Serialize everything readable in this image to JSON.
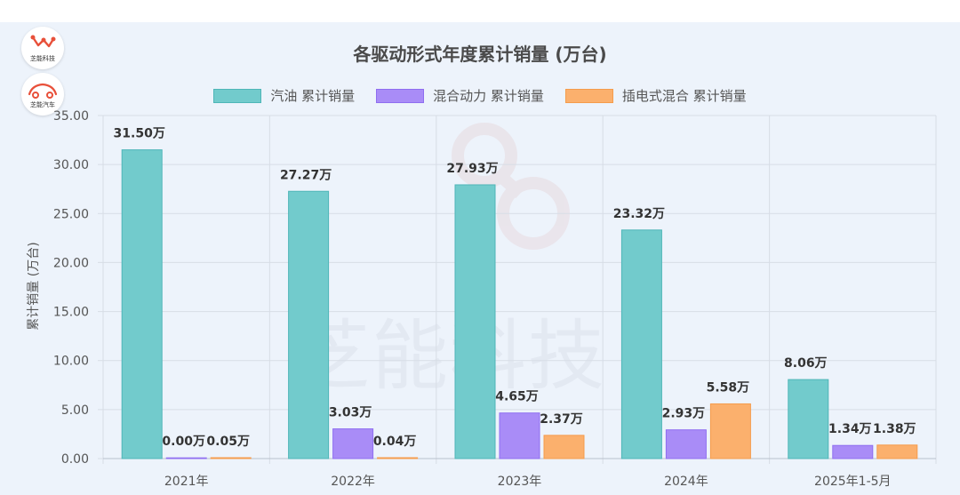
{
  "brand": {
    "logo1_text": "芝能科技",
    "logo2_text": "芝能汽车",
    "watermark": "芝能科技"
  },
  "colors": {
    "gasoline": "#72cbcc",
    "hybrid": "#a98cf7",
    "phev": "#fbb06d"
  },
  "chart_data": {
    "type": "bar",
    "title": "各驱动形式年度累计销量 (万台)",
    "ylabel": "累计销量 (万台)",
    "xlabel": "",
    "ylim": [
      0,
      35
    ],
    "yticks": [
      "0.00",
      "5.00",
      "10.00",
      "15.00",
      "20.00",
      "25.00",
      "30.00",
      "35.00"
    ],
    "categories": [
      "2021年",
      "2022年",
      "2023年",
      "2024年",
      "2025年1-5月"
    ],
    "series": [
      {
        "name": "汽油 累计销量",
        "values": [
          31.5,
          27.27,
          27.93,
          23.32,
          8.06
        ],
        "labels": [
          "31.50万",
          "27.27万",
          "27.93万",
          "23.32万",
          "8.06万"
        ]
      },
      {
        "name": "混合动力 累计销量",
        "values": [
          0.0,
          3.03,
          4.65,
          2.93,
          1.34
        ],
        "labels": [
          "0.00万",
          "3.03万",
          "4.65万",
          "2.93万",
          "1.34万"
        ]
      },
      {
        "name": "插电式混合 累计销量",
        "values": [
          0.05,
          0.04,
          2.37,
          5.58,
          1.38
        ],
        "labels": [
          "0.05万",
          "0.04万",
          "2.37万",
          "5.58万",
          "1.38万"
        ]
      }
    ],
    "legend_position": "top",
    "grid": true
  }
}
